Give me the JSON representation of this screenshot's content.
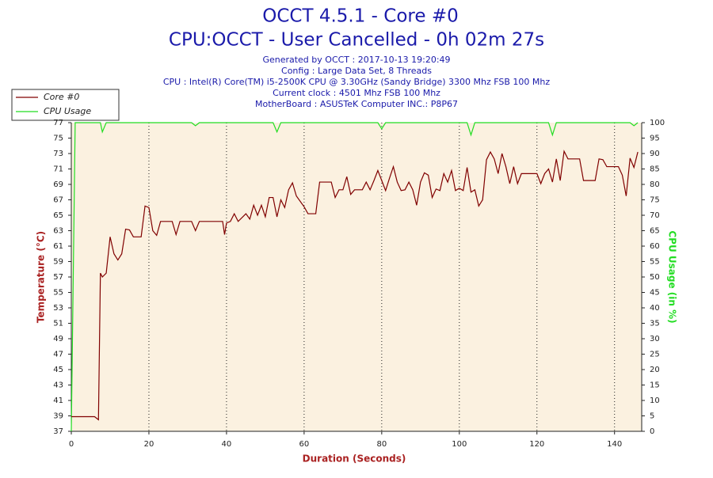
{
  "chart_data": {
    "type": "line",
    "title": "OCCT 4.5.1 - Core #0",
    "subtitle": "CPU:OCCT - User Cancelled - 0h 02m 27s",
    "annotations": [
      "Generated by OCCT : 2017-10-13 19:20:49",
      "Config : Large Data Set, 8 Threads",
      "CPU : Intel(R) Core(TM) i5-2500K CPU @ 3.30GHz (Sandy Bridge) 3300 Mhz FSB 100 Mhz",
      "Current clock : 4501 Mhz FSB 100 Mhz",
      "MotherBoard : ASUSTeK Computer INC.: P8P67"
    ],
    "x_label": "Duration (Seconds)",
    "y_label": "Temperature (°C)",
    "y2_label": "CPU Usage (in %)",
    "xlim": [
      0,
      147
    ],
    "xticks": [
      0,
      20,
      40,
      60,
      80,
      100,
      120,
      140
    ],
    "ylim": [
      37,
      77
    ],
    "yticks": [
      37,
      39,
      41,
      43,
      45,
      47,
      49,
      51,
      53,
      55,
      57,
      59,
      61,
      63,
      65,
      67,
      69,
      71,
      73,
      75,
      77
    ],
    "y2lim": [
      0,
      100
    ],
    "y2ticks": [
      0,
      5,
      10,
      15,
      20,
      25,
      30,
      35,
      40,
      45,
      50,
      55,
      60,
      65,
      70,
      75,
      80,
      85,
      90,
      95,
      100
    ],
    "grid": true,
    "legend": "top-left",
    "x": [
      0,
      1,
      6,
      7,
      7.5,
      8,
      9,
      10,
      11,
      12,
      13,
      14,
      15,
      16,
      18,
      19,
      20,
      21,
      22,
      23,
      26,
      27,
      28,
      31,
      32,
      33,
      37,
      39,
      39.5,
      40,
      41,
      42,
      43,
      45,
      46,
      47,
      48,
      49,
      50,
      51,
      52,
      53,
      54,
      55,
      56,
      57,
      58,
      60,
      61,
      63,
      64,
      67,
      68,
      69,
      70,
      71,
      72,
      73,
      75,
      76,
      77,
      78,
      79,
      80,
      81,
      82,
      83,
      84,
      85,
      86,
      87,
      88,
      89,
      90,
      91,
      92,
      93,
      94,
      95,
      96,
      97,
      98,
      99,
      100,
      101,
      102,
      103,
      104,
      105,
      106,
      107,
      108,
      109,
      110,
      111,
      112,
      113,
      114,
      115,
      116,
      120,
      121,
      122,
      123,
      124,
      125,
      126,
      127,
      128,
      131,
      132,
      135,
      136,
      137,
      138,
      141,
      142,
      143,
      144,
      145,
      146
    ],
    "series": [
      {
        "name": "Core #0",
        "color": "#800000",
        "axis": "y",
        "values": [
          38.9,
          38.9,
          38.9,
          38.5,
          57.5,
          57,
          57.5,
          62.2,
          60,
          59.2,
          60,
          63.2,
          63.1,
          62.2,
          62.2,
          66.2,
          66,
          63,
          62.4,
          64.2,
          64.2,
          62.5,
          64.2,
          64.2,
          63,
          64.2,
          64.2,
          64.2,
          62.5,
          64,
          64.2,
          65.2,
          64.2,
          65.2,
          64.5,
          66.3,
          65,
          66.3,
          64.8,
          67.3,
          67.3,
          64.8,
          67,
          66,
          68.3,
          69.2,
          67.5,
          66.1,
          65.2,
          65.2,
          69.3,
          69.3,
          67.3,
          68.3,
          68.3,
          70,
          67.7,
          68.3,
          68.3,
          69.3,
          68.3,
          69.5,
          70.8,
          69.5,
          68.2,
          69.8,
          71.3,
          69.3,
          68.2,
          68.3,
          69.3,
          68.3,
          66.3,
          69.3,
          70.5,
          70.2,
          67.3,
          68.4,
          68.2,
          70.4,
          69.3,
          70.8,
          68.2,
          68.5,
          68.2,
          71.2,
          68,
          68.3,
          66.2,
          67,
          72.2,
          73.2,
          72.3,
          70.4,
          73,
          71.3,
          69.1,
          71.3,
          69.1,
          70.4,
          70.4,
          69.1,
          70.4,
          71,
          69.3,
          72.3,
          69.5,
          73.3,
          72.3,
          72.3,
          69.5,
          69.5,
          72.3,
          72.2,
          71.3,
          71.3,
          70.2,
          67.5,
          72.4,
          71.2,
          73.2
        ]
      },
      {
        "name": "CPU Usage",
        "color": "#22dd22",
        "axis": "y2",
        "values": [
          0,
          100,
          100,
          100,
          100,
          97,
          100,
          100,
          100,
          100,
          100,
          100,
          100,
          100,
          100,
          100,
          100,
          100,
          100,
          100,
          100,
          100,
          100,
          100,
          99,
          100,
          100,
          100,
          100,
          100,
          100,
          100,
          100,
          100,
          100,
          100,
          100,
          100,
          100,
          100,
          100,
          97,
          100,
          100,
          100,
          100,
          100,
          100,
          100,
          100,
          100,
          100,
          100,
          100,
          100,
          100,
          100,
          100,
          100,
          100,
          100,
          100,
          100,
          98,
          100,
          100,
          100,
          100,
          100,
          100,
          100,
          100,
          100,
          100,
          100,
          100,
          100,
          100,
          100,
          100,
          100,
          100,
          100,
          100,
          100,
          100,
          96,
          100,
          100,
          100,
          100,
          100,
          100,
          100,
          100,
          100,
          100,
          100,
          100,
          100,
          100,
          100,
          100,
          100,
          96,
          100,
          100,
          100,
          100,
          100,
          100,
          100,
          100,
          100,
          100,
          100,
          100,
          100,
          100,
          99,
          100
        ]
      }
    ]
  }
}
